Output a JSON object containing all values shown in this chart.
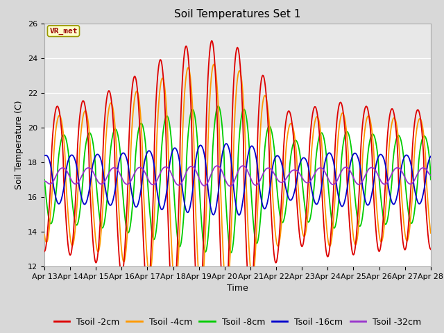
{
  "title": "Soil Temperatures Set 1",
  "xlabel": "Time",
  "ylabel": "Soil Temperature (C)",
  "ylim": [
    12,
    26
  ],
  "x_tick_labels": [
    "Apr 13",
    "Apr 14",
    "Apr 15",
    "Apr 16",
    "Apr 17",
    "Apr 18",
    "Apr 19",
    "Apr 20",
    "Apr 21",
    "Apr 22",
    "Apr 23",
    "Apr 24",
    "Apr 25",
    "Apr 26",
    "Apr 27",
    "Apr 28"
  ],
  "colors": {
    "Tsoil -2cm": "#dd0000",
    "Tsoil -4cm": "#ff9900",
    "Tsoil -8cm": "#00cc00",
    "Tsoil -16cm": "#0000cc",
    "Tsoil -32cm": "#9933cc"
  },
  "figure_facecolor": "#d8d8d8",
  "plot_facecolor": "#ffffff",
  "annotation_text": "VR_met",
  "annotation_color": "#990000",
  "annotation_bg": "#ffffcc",
  "title_fontsize": 11,
  "axis_fontsize": 9,
  "tick_fontsize": 8,
  "legend_fontsize": 9,
  "linewidth": 1.3
}
